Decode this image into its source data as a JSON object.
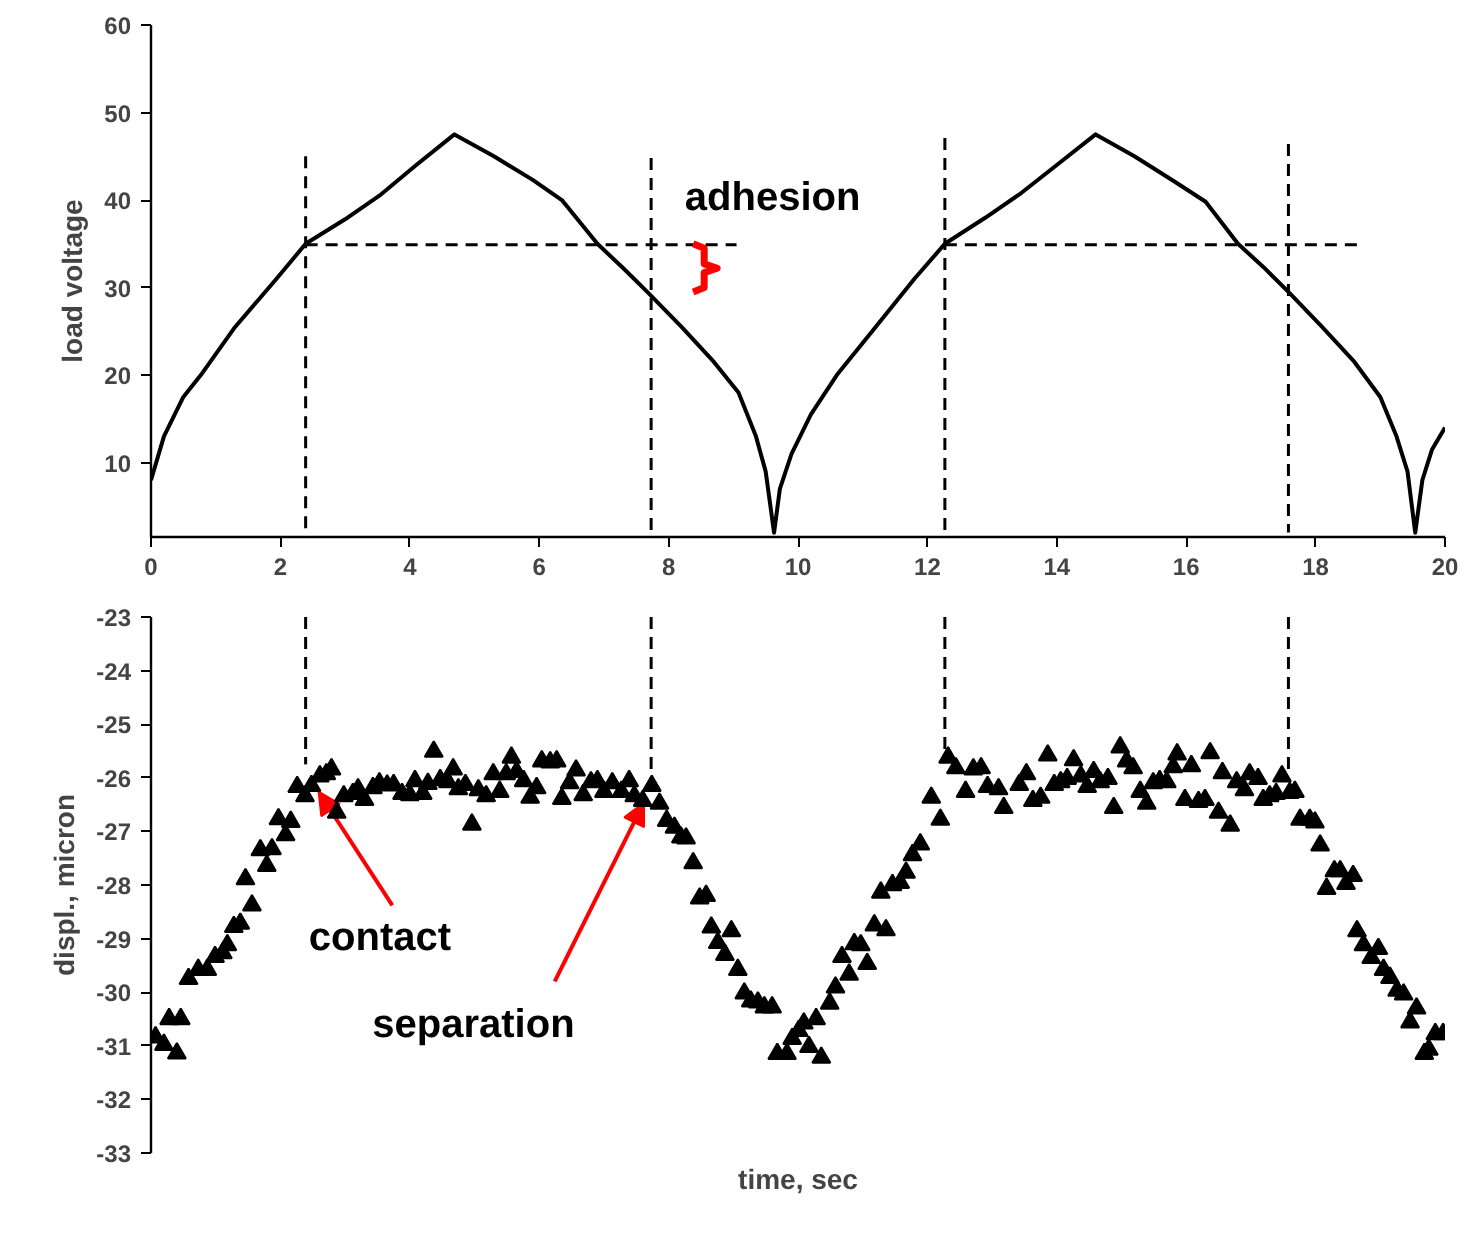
{
  "chart_data": [
    {
      "type": "line",
      "ylabel": "load voltage",
      "xlim": [
        0,
        20
      ],
      "xticks": [
        0,
        2,
        4,
        6,
        8,
        10,
        12,
        14,
        16,
        18,
        20
      ],
      "ylim": [
        1.5,
        60
      ],
      "yticks": [
        10,
        20,
        30,
        40,
        50,
        60
      ],
      "annotations": [
        "adhesion"
      ],
      "series": [
        {
          "color": "#000000",
          "line_style": "solid",
          "x": [
            0,
            0.2,
            0.5,
            0.77,
            1.3,
            1.94,
            2.39,
            3.0,
            3.53,
            4.1,
            4.69,
            5.3,
            5.9,
            6.35,
            6.9,
            7.3,
            7.67,
            8.2,
            8.7,
            9.08,
            9.35,
            9.5,
            9.63,
            9.72,
            9.9,
            10.2,
            10.6,
            11.2,
            11.8,
            12.27,
            12.9,
            13.45,
            14.0,
            14.6,
            15.2,
            15.8,
            16.3,
            16.8,
            17.2,
            17.58,
            18.1,
            18.6,
            19.0,
            19.25,
            19.42,
            19.54,
            19.65,
            19.8,
            20
          ],
          "values": [
            8,
            13,
            17.5,
            20,
            25.5,
            31,
            35,
            37.8,
            40.5,
            44,
            47.5,
            45,
            42.3,
            40,
            35,
            32.2,
            29.5,
            25.5,
            21.5,
            18,
            13,
            9,
            2,
            7,
            11,
            15.5,
            20,
            25.5,
            31,
            35,
            38,
            40.8,
            44,
            47.5,
            45,
            42.2,
            39.8,
            35,
            32.3,
            29.5,
            25.5,
            21.5,
            17.5,
            13,
            9,
            2,
            8,
            11.5,
            14
          ]
        },
        {
          "color": "#000000",
          "line_style": "dashed",
          "x": [
            2.39,
            2.39
          ],
          "values": [
            45,
            2
          ]
        },
        {
          "color": "#000000",
          "line_style": "dashed",
          "x": [
            7.73,
            7.73
          ],
          "values": [
            44.8,
            2
          ]
        },
        {
          "color": "#000000",
          "line_style": "dashed",
          "x": [
            12.27,
            12.27
          ],
          "values": [
            47.1,
            2
          ]
        },
        {
          "color": "#000000",
          "line_style": "dashed",
          "x": [
            17.58,
            17.58
          ],
          "values": [
            46.4,
            2
          ]
        },
        {
          "color": "#000000",
          "line_style": "dashed",
          "x": [
            2.39,
            9.05
          ],
          "values": [
            34.9,
            34.9
          ]
        },
        {
          "color": "#000000",
          "line_style": "dashed",
          "x": [
            12.27,
            18.7
          ],
          "values": [
            34.9,
            34.9
          ]
        }
      ]
    },
    {
      "type": "scatter",
      "xlabel": "time, sec",
      "ylabel": "displ., micron",
      "xlim": [
        0,
        20
      ],
      "ylim": [
        -33,
        -23
      ],
      "yticks": [
        -33,
        -32,
        -31,
        -30,
        -29,
        -28,
        -27,
        -26,
        -25,
        -24,
        -23
      ],
      "tick_labels": "y",
      "annotations": [
        {
          "text": "contact",
          "x": 2.59,
          "y": -26.26
        },
        {
          "text": "separation",
          "x": 7.62,
          "y": -26.46
        }
      ],
      "series": [
        {
          "color": "#000000",
          "marker": "triangle",
          "x": [
            0.07,
            0.2,
            0.28,
            0.4,
            0.46,
            0.58,
            0.73,
            0.87,
            0.99,
            1.11,
            1.18,
            1.28,
            1.38,
            1.46,
            1.56,
            1.69,
            1.79,
            1.87,
            1.97,
            2.08,
            2.16,
            2.26,
            2.38,
            2.48,
            2.61,
            2.71,
            2.79,
            2.87,
            2.98,
            3.12,
            3.2,
            3.3,
            3.43,
            3.53,
            3.65,
            3.75,
            3.88,
            4.0,
            4.08,
            4.2,
            4.28,
            4.37,
            4.47,
            4.59,
            4.67,
            4.75,
            4.86,
            4.96,
            5.06,
            5.18,
            5.29,
            5.39,
            5.49,
            5.57,
            5.65,
            5.76,
            5.86,
            5.96,
            6.04,
            6.17,
            6.27,
            6.35,
            6.47,
            6.57,
            6.68,
            6.8,
            6.9,
            7.0,
            7.13,
            7.27,
            7.39,
            7.47,
            7.6,
            7.74,
            7.86,
            7.97,
            8.09,
            8.19,
            8.27,
            8.38,
            8.48,
            8.58,
            8.66,
            8.76,
            8.87,
            8.97,
            9.07,
            9.17,
            9.27,
            9.38,
            9.48,
            9.6,
            9.68,
            9.83,
            9.91,
            10.01,
            10.09,
            10.17,
            10.28,
            10.36,
            10.49,
            10.58,
            10.68,
            10.79,
            10.87,
            10.97,
            11.07,
            11.18,
            11.28,
            11.36,
            11.46,
            11.58,
            11.67,
            11.77,
            11.89,
            12.06,
            12.2,
            12.32,
            12.44,
            12.59,
            12.71,
            12.83,
            12.93,
            13.1,
            13.18,
            13.42,
            13.53,
            13.63,
            13.75,
            13.86,
            13.96,
            14.06,
            14.16,
            14.26,
            14.37,
            14.47,
            14.57,
            14.67,
            14.79,
            14.88,
            14.98,
            15.08,
            15.18,
            15.29,
            15.39,
            15.49,
            15.59,
            15.7,
            15.8,
            15.86,
            15.98,
            16.08,
            16.19,
            16.29,
            16.37,
            16.5,
            16.56,
            16.68,
            16.78,
            16.9,
            16.98,
            17.11,
            17.19,
            17.29,
            17.39,
            17.48,
            17.6,
            17.68,
            17.76,
            17.91,
            17.99,
            18.07,
            18.17,
            18.29,
            18.38,
            18.47,
            18.58,
            18.64,
            18.74,
            18.86,
            18.97,
            19.05,
            19.15,
            19.26,
            19.36,
            19.46,
            19.56,
            19.68,
            19.75,
            19.85,
            19.97
          ],
          "values": [
            -30.84,
            -30.98,
            -30.5,
            -31.14,
            -30.5,
            -29.75,
            -29.58,
            -29.58,
            -29.34,
            -29.27,
            -29.12,
            -28.78,
            -28.72,
            -27.89,
            -28.38,
            -27.35,
            -27.64,
            -27.33,
            -26.77,
            -27.07,
            -26.82,
            -26.17,
            -26.34,
            -26.15,
            -25.97,
            -25.93,
            -25.84,
            -26.65,
            -26.34,
            -26.3,
            -26.21,
            -26.41,
            -26.19,
            -26.1,
            -26.14,
            -26.13,
            -26.3,
            -26.32,
            -26.06,
            -26.3,
            -26.11,
            -25.51,
            -26.04,
            -26.08,
            -25.84,
            -26.21,
            -26.13,
            -26.87,
            -26.23,
            -26.34,
            -25.93,
            -26.26,
            -25.93,
            -25.62,
            -25.89,
            -26.06,
            -26.37,
            -26.19,
            -25.69,
            -25.71,
            -25.69,
            -26.39,
            -26.1,
            -25.86,
            -26.32,
            -26.08,
            -26.06,
            -26.26,
            -26.1,
            -26.26,
            -26.06,
            -26.34,
            -26.43,
            -26.15,
            -26.48,
            -26.8,
            -26.93,
            -27.11,
            -27.13,
            -27.59,
            -28.25,
            -28.2,
            -28.79,
            -29.08,
            -29.3,
            -28.86,
            -29.58,
            -30.02,
            -30.17,
            -30.19,
            -30.28,
            -30.28,
            -31.15,
            -31.15,
            -30.87,
            -30.72,
            -30.58,
            -31.02,
            -30.5,
            -31.22,
            -30.21,
            -29.91,
            -29.34,
            -29.67,
            -29.1,
            -29.12,
            -29.47,
            -28.75,
            -28.14,
            -28.84,
            -28.0,
            -27.96,
            -27.77,
            -27.44,
            -27.24,
            -26.37,
            -26.78,
            -25.62,
            -25.82,
            -26.26,
            -25.84,
            -25.82,
            -26.17,
            -26.21,
            -26.56,
            -26.13,
            -25.93,
            -26.43,
            -26.37,
            -25.58,
            -26.13,
            -26.08,
            -26.02,
            -25.67,
            -25.97,
            -26.17,
            -25.89,
            -26.08,
            -26.02,
            -26.56,
            -25.43,
            -25.69,
            -25.82,
            -26.26,
            -26.48,
            -26.1,
            -26.06,
            -26.08,
            -25.8,
            -25.56,
            -26.41,
            -25.78,
            -26.45,
            -26.41,
            -25.54,
            -26.65,
            -25.91,
            -26.89,
            -26.08,
            -26.23,
            -25.93,
            -26.02,
            -26.41,
            -26.34,
            -26.3,
            -25.97,
            -26.28,
            -26.26,
            -26.78,
            -26.78,
            -26.83,
            -27.26,
            -28.07,
            -27.74,
            -27.74,
            -27.98,
            -27.83,
            -28.86,
            -29.12,
            -29.36,
            -29.19,
            -29.58,
            -29.73,
            -29.97,
            -30.04,
            -30.56,
            -30.3,
            -31.15,
            -31.07,
            -30.78,
            -30.78
          ]
        },
        {
          "type": "line",
          "color": "#000000",
          "line_style": "dashed",
          "x": [
            2.39,
            2.39
          ],
          "values": [
            -23,
            -25.75
          ]
        },
        {
          "type": "line",
          "color": "#000000",
          "line_style": "dashed",
          "x": [
            7.73,
            7.73
          ],
          "values": [
            -23,
            -26.3
          ]
        },
        {
          "type": "line",
          "color": "#000000",
          "line_style": "dashed",
          "x": [
            12.27,
            12.27
          ],
          "values": [
            -23,
            -25.54
          ]
        },
        {
          "type": "line",
          "color": "#000000",
          "line_style": "dashed",
          "x": [
            17.58,
            17.58
          ],
          "values": [
            -23,
            -25.86
          ]
        }
      ]
    }
  ]
}
